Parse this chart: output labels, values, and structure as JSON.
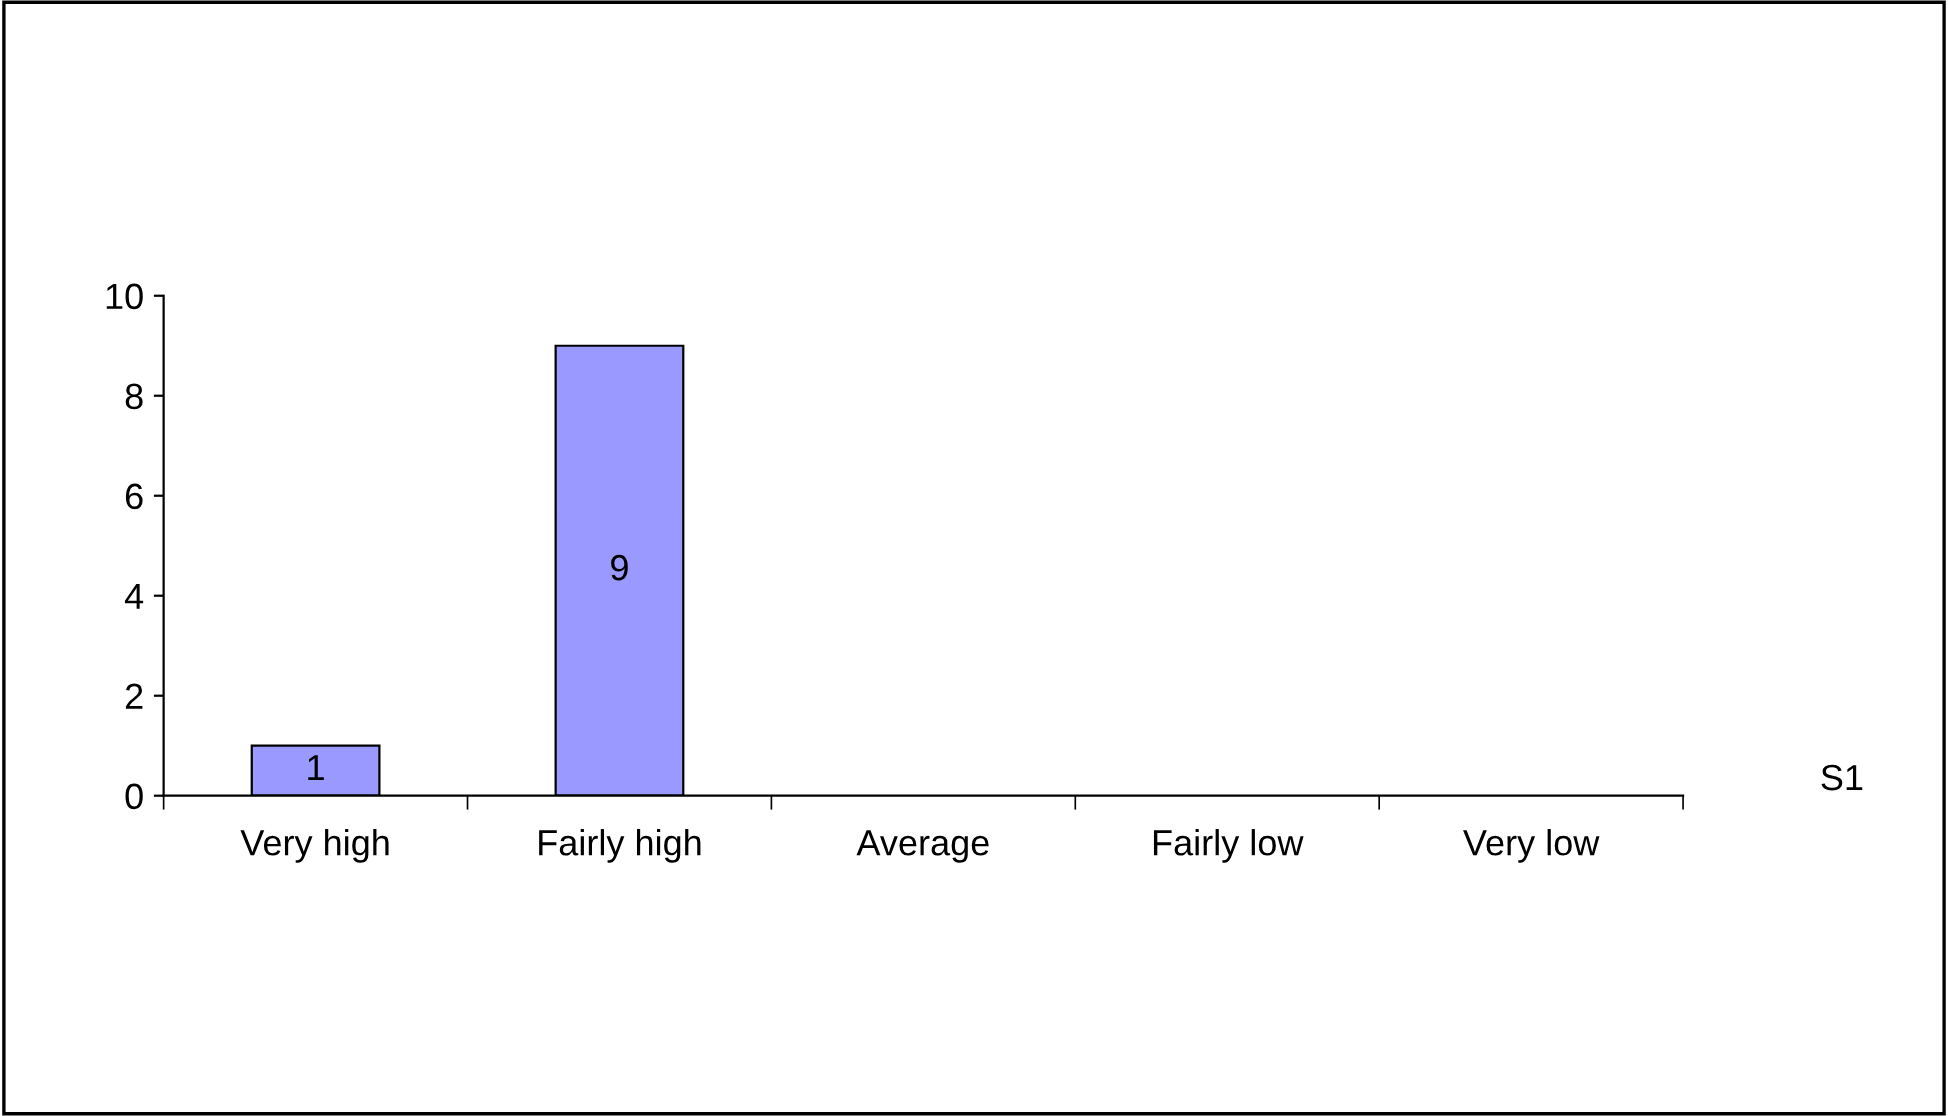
{
  "chart_data": {
    "type": "bar",
    "categories": [
      "Very high",
      "Fairly high",
      "Average",
      "Fairly low",
      "Very low"
    ],
    "series": [
      {
        "name": "S1",
        "color": "#9999ff",
        "values": [
          1,
          9,
          null,
          null,
          null
        ]
      }
    ],
    "ylim": [
      0,
      10
    ],
    "yticks": [
      0,
      2,
      4,
      6,
      8,
      10
    ],
    "data_labels": true,
    "grid": false,
    "legend": false
  }
}
